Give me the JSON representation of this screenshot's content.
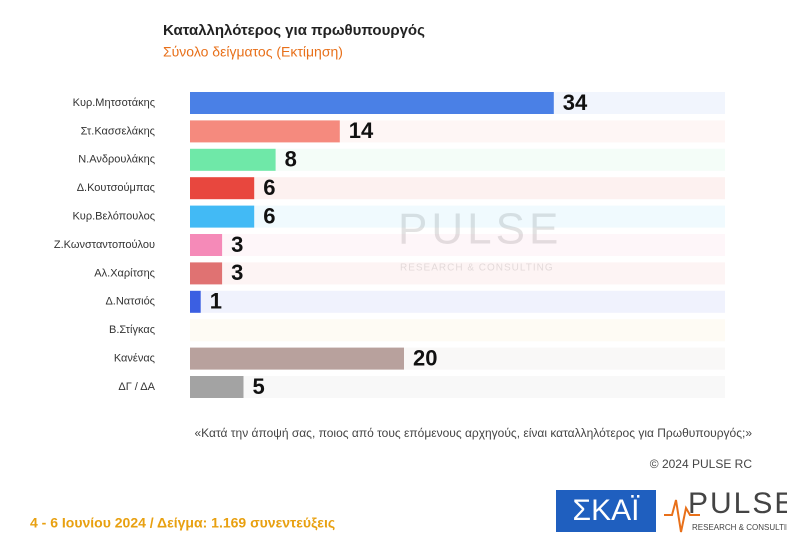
{
  "chart_data": {
    "type": "hbar",
    "title": "Καταλληλότερος για πρωθυπουργός",
    "subtitle": "Σύνολο δείγματος   (Εκτίμηση)",
    "categories": [
      "Κυρ.Μητσοτάκης",
      "Στ.Κασσελάκης",
      "Ν.Ανδρουλάκης",
      "Δ.Κουτσούμπας",
      "Κυρ.Βελόπουλος",
      "Ζ.Κωνσταντοπούλου",
      "Αλ.Χαρίτσης",
      "Δ.Νατσιός",
      "Β.Στίγκας",
      "Κανένας",
      "ΔΓ / ΔΑ"
    ],
    "values": [
      34,
      14,
      8,
      6,
      6,
      3,
      3,
      1,
      null,
      20,
      5
    ],
    "colors": [
      "#4a80e6",
      "#f58a7e",
      "#6fe8a8",
      "#e8473e",
      "#42baf5",
      "#f58ab8",
      "#e07272",
      "#3b5fe2",
      "#f7c873",
      "#b8a19d",
      "#a3a3a3"
    ],
    "xlim": [
      0,
      50
    ]
  },
  "notes": {
    "question": "«Κατά την άποψή σας, ποιος από τους επόμενους αρχηγούς, είναι καταλληλότερος για Πρωθυπουργός;»",
    "copyright": "© 2024 PULSE RC",
    "footer": "4 - 6  Ιουνίου 2024  /  Δείγμα:  1.169 συνεντεύξεις",
    "logo_skai": "ΣΚΑΪ",
    "logo_pulse": "PULSE",
    "logo_pulse_sub": "RESEARCH & CONSULTING"
  }
}
